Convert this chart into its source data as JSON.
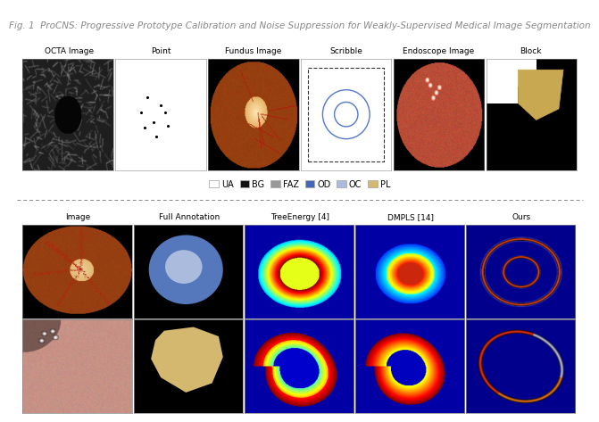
{
  "title": "Fig. 1  ProCNS: Progressive Prototype Calibration and Noise Suppression for Weakly-Supervised Medical Image Segmentation",
  "top_col_labels": [
    "OCTA Image",
    "Point",
    "Fundus Image",
    "Scribble",
    "Endoscope Image",
    "Block"
  ],
  "legend_items": [
    {
      "label": "UA",
      "color": "#ffffff",
      "edgecolor": "#aaaaaa"
    },
    {
      "label": "BG",
      "color": "#111111",
      "edgecolor": "#aaaaaa"
    },
    {
      "label": "FAZ",
      "color": "#999999",
      "edgecolor": "#aaaaaa"
    },
    {
      "label": "OD",
      "color": "#4466bb",
      "edgecolor": "#aaaaaa"
    },
    {
      "label": "OC",
      "color": "#aabbdd",
      "edgecolor": "#aaaaaa"
    },
    {
      "label": "PL",
      "color": "#d4b870",
      "edgecolor": "#aaaaaa"
    }
  ],
  "bottom_col_labels": [
    "Image",
    "Full Annotation",
    "TreeEnergy [4]",
    "DMPLS [14]",
    "Ours"
  ],
  "figure_bg": "#ffffff",
  "title_color": "#888888",
  "title_fontsize": 7.5
}
